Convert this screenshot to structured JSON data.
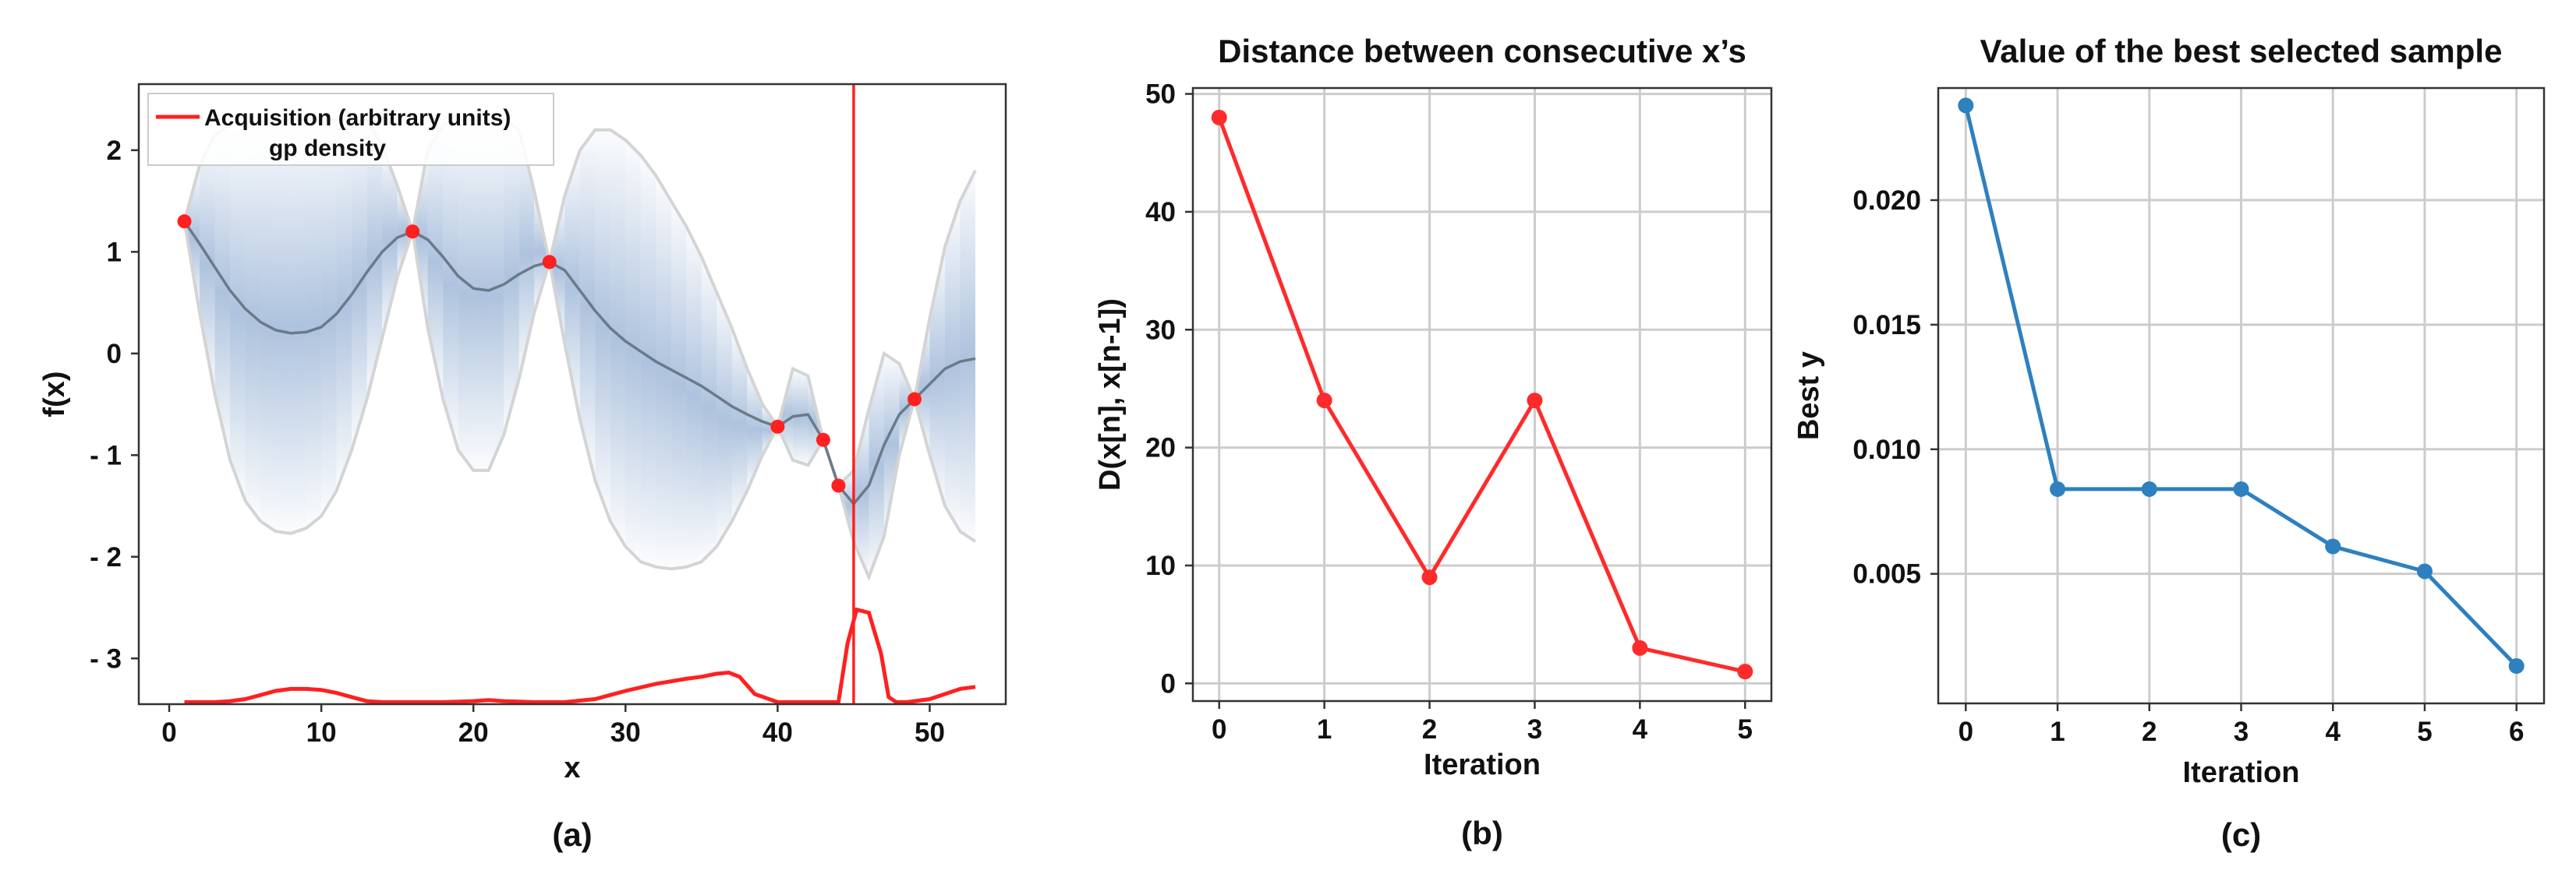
{
  "colors": {
    "acquisition": "#ff2020",
    "density": "#3d6fb0",
    "bound": "#d4d4d4",
    "mean": "#6a7a8a",
    "series_b": "#ff2a2a",
    "series_c": "#2e80bf",
    "grid": "#cccccc"
  },
  "chart_data": [
    {
      "id": "a",
      "type": "line",
      "caption": "(a)",
      "xlabel": "x",
      "ylabel": "f(x)",
      "xlim": [
        -2,
        55
      ],
      "ylim": [
        -3.45,
        2.65
      ],
      "xticks": [
        0,
        10,
        20,
        30,
        40,
        50
      ],
      "xtick_labels": [
        "0",
        "10",
        "20",
        "30",
        "40",
        "50"
      ],
      "yticks": [
        2,
        1,
        0,
        -1,
        -2,
        -3
      ],
      "ytick_labels": [
        "2",
        "1",
        "0",
        "- 1",
        "- 2",
        "- 3"
      ],
      "legend": [
        "Acquisition  (arbitrary units)",
        "gp density"
      ],
      "legend_position": "top-left",
      "samples": [
        {
          "x": 1,
          "y": 1.3
        },
        {
          "x": 16,
          "y": 1.2
        },
        {
          "x": 25,
          "y": 0.9
        },
        {
          "x": 40,
          "y": -0.72
        },
        {
          "x": 43,
          "y": -0.85
        },
        {
          "x": 44,
          "y": -1.3
        },
        {
          "x": 49,
          "y": -0.45
        }
      ],
      "mean": {
        "x": [
          1,
          2,
          3,
          4,
          5,
          6,
          7,
          8,
          9,
          10,
          11,
          12,
          13,
          14,
          15,
          16,
          17,
          18,
          19,
          20,
          21,
          22,
          23,
          24,
          25,
          26,
          27,
          28,
          29,
          30,
          31,
          32,
          33,
          34,
          35,
          36,
          37,
          38,
          39,
          40,
          41,
          42,
          43,
          44,
          45,
          46,
          47,
          48,
          49,
          50,
          51,
          52,
          53
        ],
        "y": [
          1.3,
          1.08,
          0.85,
          0.62,
          0.44,
          0.31,
          0.23,
          0.2,
          0.21,
          0.26,
          0.39,
          0.58,
          0.8,
          1.0,
          1.14,
          1.2,
          1.12,
          0.95,
          0.76,
          0.64,
          0.62,
          0.68,
          0.78,
          0.86,
          0.9,
          0.82,
          0.62,
          0.42,
          0.25,
          0.12,
          0.02,
          -0.08,
          -0.16,
          -0.24,
          -0.32,
          -0.42,
          -0.52,
          -0.6,
          -0.67,
          -0.72,
          -0.62,
          -0.6,
          -0.85,
          -1.3,
          -1.48,
          -1.3,
          -0.9,
          -0.6,
          -0.45,
          -0.3,
          -0.15,
          -0.08,
          -0.05
        ]
      },
      "upper": {
        "x": [
          1,
          2,
          3,
          4,
          5,
          6,
          7,
          8,
          9,
          10,
          11,
          12,
          13,
          14,
          15,
          16,
          17,
          18,
          19,
          20,
          21,
          22,
          23,
          24,
          25,
          26,
          27,
          28,
          29,
          30,
          31,
          32,
          33,
          34,
          35,
          36,
          37,
          38,
          39,
          40,
          41,
          42,
          43,
          44,
          45,
          46,
          47,
          48,
          49,
          50,
          51,
          52,
          53
        ],
        "y": [
          1.3,
          1.85,
          2.15,
          2.25,
          2.25,
          2.28,
          2.3,
          2.3,
          2.3,
          2.3,
          2.3,
          2.3,
          2.3,
          2.05,
          1.65,
          1.2,
          2.0,
          2.25,
          2.3,
          2.3,
          2.3,
          2.3,
          2.2,
          1.6,
          0.9,
          1.55,
          2.0,
          2.2,
          2.2,
          2.1,
          1.95,
          1.75,
          1.5,
          1.25,
          0.95,
          0.6,
          0.25,
          -0.15,
          -0.5,
          -0.72,
          -0.15,
          -0.22,
          -0.85,
          -1.3,
          -1.15,
          -0.55,
          0.0,
          -0.1,
          -0.45,
          0.35,
          1.05,
          1.5,
          1.8
        ]
      },
      "lower": {
        "x": [
          1,
          2,
          3,
          4,
          5,
          6,
          7,
          8,
          9,
          10,
          11,
          12,
          13,
          14,
          15,
          16,
          17,
          18,
          19,
          20,
          21,
          22,
          23,
          24,
          25,
          26,
          27,
          28,
          29,
          30,
          31,
          32,
          33,
          34,
          35,
          36,
          37,
          38,
          39,
          40,
          41,
          42,
          43,
          44,
          45,
          46,
          47,
          48,
          49,
          50,
          51,
          52,
          53
        ],
        "y": [
          1.3,
          0.4,
          -0.4,
          -1.05,
          -1.45,
          -1.65,
          -1.75,
          -1.77,
          -1.72,
          -1.6,
          -1.35,
          -0.95,
          -0.45,
          0.15,
          0.75,
          1.2,
          0.25,
          -0.45,
          -0.95,
          -1.15,
          -1.15,
          -0.8,
          -0.25,
          0.4,
          0.9,
          0.1,
          -0.65,
          -1.25,
          -1.65,
          -1.9,
          -2.05,
          -2.1,
          -2.12,
          -2.1,
          -2.05,
          -1.9,
          -1.65,
          -1.35,
          -1.0,
          -0.72,
          -1.05,
          -1.1,
          -0.85,
          -1.3,
          -1.85,
          -2.2,
          -1.8,
          -1.0,
          -0.45,
          -1.0,
          -1.5,
          -1.75,
          -1.85
        ]
      },
      "acquisition": {
        "x": [
          1,
          2,
          3,
          4,
          5,
          6,
          7,
          8,
          9,
          10,
          11,
          12,
          13,
          14,
          16,
          18,
          20,
          21,
          22,
          24,
          25,
          26,
          28,
          30,
          32,
          34,
          35,
          36,
          36.8,
          37.5,
          38.5,
          40,
          44,
          44.6,
          45.2,
          46,
          46.8,
          47.3,
          47.8,
          48.5,
          50,
          51,
          52,
          53
        ],
        "y": [
          -3.43,
          -3.43,
          -3.43,
          -3.42,
          -3.4,
          -3.36,
          -3.32,
          -3.3,
          -3.3,
          -3.31,
          -3.34,
          -3.38,
          -3.42,
          -3.43,
          -3.43,
          -3.43,
          -3.42,
          -3.41,
          -3.42,
          -3.43,
          -3.43,
          -3.43,
          -3.4,
          -3.32,
          -3.25,
          -3.2,
          -3.18,
          -3.15,
          -3.14,
          -3.18,
          -3.35,
          -3.43,
          -3.43,
          -2.85,
          -2.52,
          -2.55,
          -2.95,
          -3.38,
          -3.43,
          -3.43,
          -3.4,
          -3.35,
          -3.3,
          -3.28
        ]
      },
      "vline_x": 45
    },
    {
      "id": "b",
      "type": "line",
      "caption": "(b)",
      "title": "Distance between consecutive x’s",
      "xlabel": "Iteration",
      "ylabel": "D(x[n], x[n-1])",
      "xlim": [
        -0.25,
        5.25
      ],
      "ylim": [
        -1.5,
        50.5
      ],
      "xticks": [
        0,
        1,
        2,
        3,
        4,
        5
      ],
      "xtick_labels": [
        "0",
        "1",
        "2",
        "3",
        "4",
        "5"
      ],
      "yticks": [
        0,
        10,
        20,
        30,
        40,
        50
      ],
      "ytick_labels": [
        "0",
        "10",
        "20",
        "30",
        "40",
        "50"
      ],
      "grid": true,
      "x": [
        0,
        1,
        2,
        3,
        4,
        5
      ],
      "values": [
        48,
        24,
        9,
        24,
        3,
        1
      ]
    },
    {
      "id": "c",
      "type": "line",
      "caption": "(c)",
      "title": "Value of the best selected sample",
      "xlabel": "Iteration",
      "ylabel": "Best y",
      "xlim": [
        -0.3,
        6.3
      ],
      "ylim": [
        -0.0002,
        0.0245
      ],
      "xticks": [
        0,
        1,
        2,
        3,
        4,
        5,
        6
      ],
      "xtick_labels": [
        "0",
        "1",
        "2",
        "3",
        "4",
        "5",
        "6"
      ],
      "yticks": [
        0.02,
        0.015,
        0.01,
        0.005
      ],
      "ytick_labels": [
        "0.020",
        "0.015",
        "0.010",
        "0.005"
      ],
      "grid": true,
      "x": [
        0,
        1,
        2,
        3,
        4,
        5,
        6
      ],
      "values": [
        0.0238,
        0.0084,
        0.0084,
        0.0084,
        0.0061,
        0.0051,
        0.0013
      ]
    }
  ]
}
